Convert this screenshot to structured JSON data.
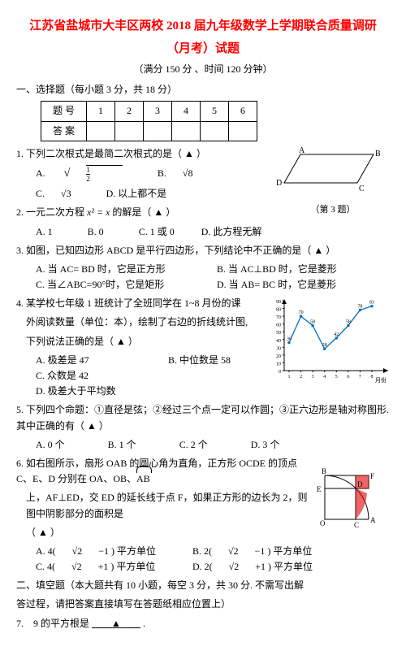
{
  "header": {
    "title_line1": "江苏省盐城市大丰区两校 2018 届九年级数学上学期联合质量调研",
    "title_line2": "（月考）试题",
    "meta": "（满分 150 分 、时间 120 分钟）"
  },
  "section1": {
    "head": "一、选择题（每小题 3 分，共 18 分）",
    "grid": {
      "row1_label": "题 号",
      "cols": [
        "1",
        "2",
        "3",
        "4",
        "5",
        "6"
      ],
      "row2_label": "答 案"
    }
  },
  "q1": {
    "stem": "1. 下列二次根式是最简二次根式的是（ ▲ ）",
    "optA_pre": "A. ",
    "optA_sqrt": "1/2",
    "optB_pre": "B. ",
    "optB_val": "√8",
    "optC_pre": "C. ",
    "optC_val": "√3",
    "optD": "D. 以上都不是"
  },
  "fig3_caption": "（第 3 题）",
  "fig3_labels": {
    "A": "A",
    "B": "B",
    "C": "C",
    "D": "D"
  },
  "q2": {
    "stem": "2. 一元二次方程 ",
    "eq": "x² = x",
    "stem2": " 的解是（ ▲ ）",
    "optA": "A. 1",
    "optB": "B. 0",
    "optC": "C. 1 或 0",
    "optD": "D. 此方程无解"
  },
  "q3": {
    "stem": "3. 如图，已知四边形 ABCD 是平行四边形，下列结论中不正确的是（ ▲ ）",
    "optA": "A. 当 AC= BD 时，它是正方形",
    "optB": "B. 当 AC⊥BD 时，它是菱形",
    "optC": "C. 当∠ABC=90°时，它是矩形",
    "optD": "D. 当 AB= BC 时，它是菱形"
  },
  "q4": {
    "stem1": "4. 某学校七年级 1 班统计了全班同学在 1~8 月份的课",
    "stem2": "外阅读数量（单位：本），绘制了右边的折线统计图,",
    "stem3": "下列说法正确的是（ ▲ ）",
    "optA": "A. 极差是 47",
    "optB": "B. 中位数是 58",
    "optC": "C. 众数是 42",
    "optD": "D. 极差大于平均数",
    "chart": {
      "x": [
        1,
        2,
        3,
        4,
        5,
        6,
        7,
        8
      ],
      "y": [
        36,
        70,
        58,
        28,
        42,
        58,
        78,
        83
      ],
      "y_ticks": [
        0,
        10,
        20,
        30,
        40,
        50,
        60,
        70,
        80,
        90
      ],
      "xlabel": "月份",
      "line_color": "#0070c0",
      "tick_color": "#000000"
    }
  },
  "q5": {
    "stem": "5. 下列四个命题：①直径是弦；②经过三个点一定可以作圆；③正六边形是轴对称图形. 其中正确的有（ ▲ ）",
    "optA": "A. 0 个",
    "optB": "B. 1 个",
    "optC": "C. 2 个",
    "optD": "D. 3 个"
  },
  "q6": {
    "stem1": "6. 如右图所示，扇形 OAB 的圆心角为直角，正方形 OCDE 的顶点 C、E、D 分别在 OA、OB、",
    "stem1_ab": "AB",
    "stem2": "上，AF⊥ED，交 ED 的延长线于点 F，如果正方形的边长为 2，则图中阴影部分的面积是",
    "stem3": "（ ▲ ）",
    "optA_pre": "A. 4(",
    "optA_sqrt": "√2",
    "optA_post": "−1 ) 平方单位",
    "optB_pre": "B. 2(",
    "optB_sqrt": "√2",
    "optB_post": "−1 ) 平方单位",
    "optC_pre": "C. 4(",
    "optC_sqrt": "√2",
    "optC_post": "+1 ) 平方单位",
    "optD_pre": "D. 2(",
    "optD_sqrt": "√2",
    "optD_post": "+1 ) 平方单位",
    "fig_labels": {
      "B": "B",
      "D": "D",
      "F": "F",
      "E": "E",
      "O": "O",
      "C": "C",
      "A": "A"
    }
  },
  "section2": {
    "head1": "二、填空题（本大题共有 10 小题，每空 3 分，共 30 分. 不需写出解",
    "head2": "答过程，请把答案直接填写在答题纸相应位置上）"
  },
  "q7": {
    "stem": "7.　9 的平方根是",
    "blank": "▲",
    "tail": "."
  }
}
